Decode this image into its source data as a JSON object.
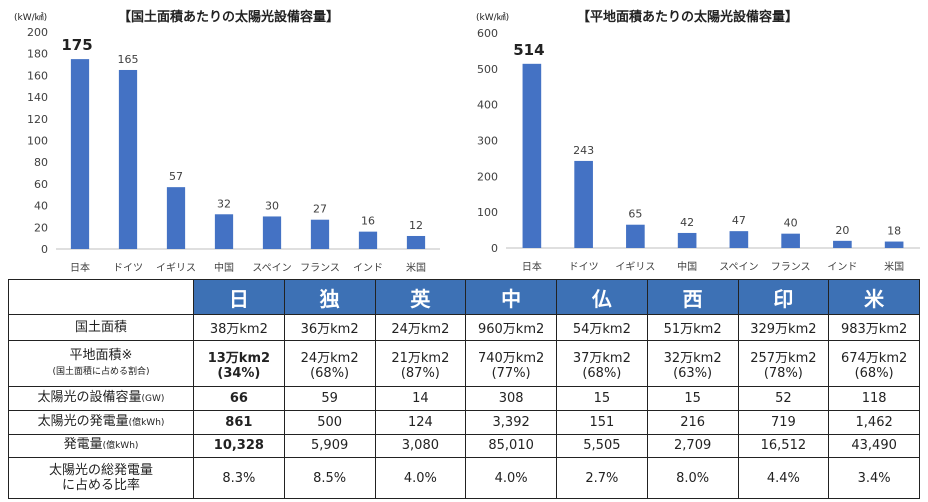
{
  "charts": [
    {
      "title": "【国土面積あたりの太陽光設備容量】",
      "unit": "(kW/㎢)",
      "highlight": "175"
    },
    {
      "title": "【平地面積あたりの太陽光設備容量】",
      "unit": "(kW/㎢)",
      "highlight": "514"
    }
  ],
  "chart_data": [
    {
      "type": "bar",
      "title": "【国土面積あたりの太陽光設備容量】",
      "ylabel": "(kW/㎢)",
      "categories": [
        "日本",
        "ドイツ",
        "イギリス",
        "中国",
        "スペイン",
        "フランス",
        "インド",
        "米国"
      ],
      "values": [
        175,
        165,
        57,
        32,
        30,
        27,
        16,
        12
      ],
      "data_labels": [
        "175",
        "165",
        "57",
        "32",
        "30",
        "27",
        "16",
        "12"
      ],
      "yticks": [
        0,
        20,
        40,
        60,
        80,
        100,
        120,
        140,
        160,
        180,
        200
      ],
      "ylim": [
        0,
        200
      ],
      "bar_color": "#4472c4",
      "grid": false
    },
    {
      "type": "bar",
      "title": "【平地面積あたりの太陽光設備容量】",
      "ylabel": "(kW/㎢)",
      "categories": [
        "日本",
        "ドイツ",
        "イギリス",
        "中国",
        "スペイン",
        "フランス",
        "インド",
        "米国"
      ],
      "values": [
        514,
        243,
        65,
        42,
        47,
        40,
        20,
        18
      ],
      "data_labels": [
        "514",
        "243",
        "65",
        "42",
        "47",
        "40",
        "20",
        "18"
      ],
      "yticks": [
        0,
        100,
        200,
        300,
        400,
        500,
        600
      ],
      "ylim": [
        0,
        600
      ],
      "bar_color": "#4472c4",
      "grid": false
    }
  ],
  "table": {
    "header_color": "#3d71b5",
    "countries": [
      "日",
      "独",
      "英",
      "中",
      "仏",
      "西",
      "印",
      "米"
    ],
    "rows": [
      {
        "label": "国土面積",
        "sub": "",
        "bold_first": false,
        "cells": [
          "38万km2",
          "36万km2",
          "24万km2",
          "960万km2",
          "54万km2",
          "51万km2",
          "329万km2",
          "983万km2"
        ],
        "cells2": [
          "",
          "",
          "",
          "",
          "",
          "",
          "",
          ""
        ]
      },
      {
        "label": "平地面積※",
        "sub": "(国土面積に占める割合)",
        "bold_first": true,
        "cells": [
          "13万km2",
          "24万km2",
          "21万km2",
          "740万km2",
          "37万km2",
          "32万km2",
          "257万km2",
          "674万km2"
        ],
        "cells2": [
          "(34%)",
          "(68%)",
          "(87%)",
          "(77%)",
          "(68%)",
          "(63%)",
          "(78%)",
          "(68%)"
        ]
      },
      {
        "label": "太陽光の設備容量",
        "sub": "(GW)",
        "bold_first": true,
        "cells": [
          "66",
          "59",
          "14",
          "308",
          "15",
          "15",
          "52",
          "118"
        ],
        "cells2": [
          "",
          "",
          "",
          "",
          "",
          "",
          "",
          ""
        ]
      },
      {
        "label": "太陽光の発電量",
        "sub": "(億kWh)",
        "bold_first": true,
        "cells": [
          "861",
          "500",
          "124",
          "3,392",
          "151",
          "216",
          "719",
          "1,462"
        ],
        "cells2": [
          "",
          "",
          "",
          "",
          "",
          "",
          "",
          ""
        ]
      },
      {
        "label": "発電量",
        "sub": "(億kWh)",
        "bold_first": true,
        "cells": [
          "10,328",
          "5,909",
          "3,080",
          "85,010",
          "5,505",
          "2,709",
          "16,512",
          "43,490"
        ],
        "cells2": [
          "",
          "",
          "",
          "",
          "",
          "",
          "",
          ""
        ]
      },
      {
        "label": "太陽光の総発電量",
        "sub": "に占める比率",
        "bold_first": false,
        "cells": [
          "8.3%",
          "8.5%",
          "4.0%",
          "4.0%",
          "2.7%",
          "8.0%",
          "4.4%",
          "3.4%"
        ],
        "cells2": [
          "",
          "",
          "",
          "",
          "",
          "",
          "",
          ""
        ]
      }
    ]
  }
}
